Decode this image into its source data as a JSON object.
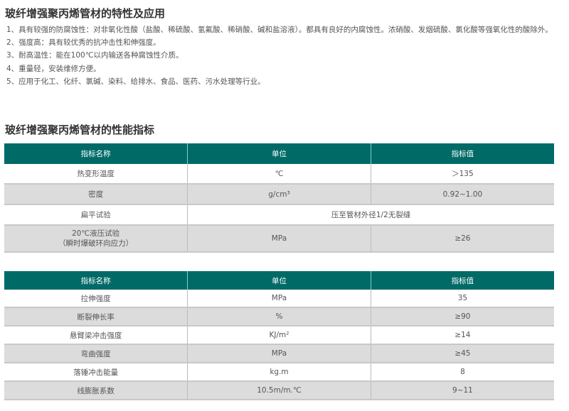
{
  "section1": {
    "title": "玻纤增强聚丙烯管材的特性及应用",
    "items": [
      "1、具有较强的防腐蚀性：对非氧化性酸（盐酸、稀硫酸、氢氟酸、稀硝酸、碱和盐溶液）。都具有良好的内腐蚀性。浓硝酸、发烟硫酸、氯化酸等强氧化性的酸除外。",
      "2、强度高：具有较优秀的抗冲击性和伸强度。",
      "3、耐高温性：能在100℃以内输送各种腐蚀性介质。",
      "4、重量轻，安装维修方便。",
      "5、应用于化工、化纤、氯碱、染料、给排水、食品、医药、污水处理等行业。"
    ]
  },
  "section2": {
    "title": "玻纤增强聚丙烯管材的性能指标"
  },
  "header_color": "#006a67",
  "table1": {
    "headers": [
      "指标名称",
      "单位",
      "指标值"
    ],
    "rows": [
      [
        "热变形温度",
        "℃",
        "＞135"
      ],
      [
        "密度",
        "g/cm³",
        "0.92~1.00"
      ],
      [
        "扁平试验",
        "压至管材外径1/2无裂缝"
      ],
      [
        "20℃液压试验",
        "（瞬时爆破环向应力）",
        "MPa",
        "≥26"
      ]
    ]
  },
  "table2": {
    "headers": [
      "指标名称",
      "单位",
      "指标值"
    ],
    "rows": [
      [
        "拉伸强度",
        "MPa",
        "35"
      ],
      [
        "断裂伸长率",
        "%",
        "≥90"
      ],
      [
        "悬臂梁冲击强度",
        "KJ/m²",
        "≥14"
      ],
      [
        "弯曲强度",
        "MPa",
        "≥45"
      ],
      [
        "落锤冲击能量",
        "kg.m",
        "8"
      ],
      [
        "线膨胀系数",
        "10.5m/m.℃",
        "9~11"
      ]
    ]
  }
}
